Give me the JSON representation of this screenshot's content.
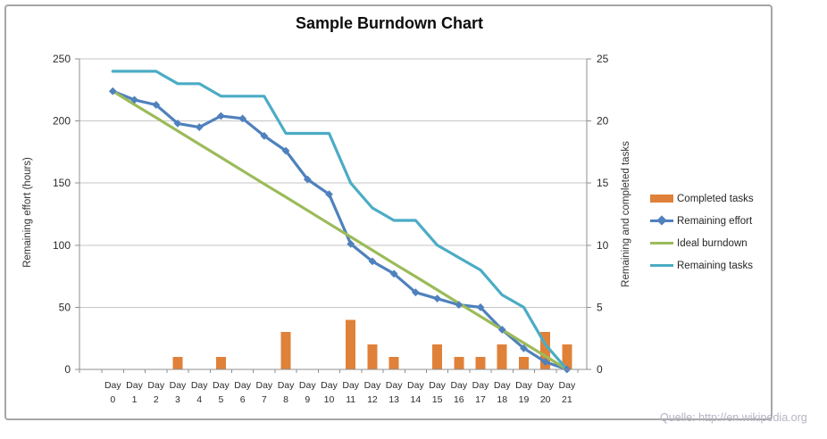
{
  "title": "Sample Burndown Chart",
  "watermark": "Quelle: http://en.wikipedia.org",
  "chart_data": {
    "type": "combo",
    "title": "Sample Burndown Chart",
    "grid": true,
    "legend_position": "right",
    "categories": [
      "Day 0",
      "Day 1",
      "Day 2",
      "Day 3",
      "Day 4",
      "Day 5",
      "Day 6",
      "Day 7",
      "Day 8",
      "Day 9",
      "Day 10",
      "Day 11",
      "Day 12",
      "Day 13",
      "Day 14",
      "Day 15",
      "Day 16",
      "Day 17",
      "Day 18",
      "Day 19",
      "Day 20",
      "Day 21"
    ],
    "left_axis": {
      "label": "Remaining effort (hours)",
      "ticks": [
        0,
        50,
        100,
        150,
        200,
        250
      ],
      "range": [
        0,
        250
      ]
    },
    "right_axis": {
      "label": "Remaining and completed tasks",
      "ticks": [
        0,
        5,
        10,
        15,
        20,
        25
      ],
      "range": [
        0,
        25
      ]
    },
    "series": [
      {
        "name": "Completed tasks",
        "type": "bar",
        "axis": "right",
        "color": "#e0813a",
        "values": [
          0,
          0,
          0,
          1,
          0,
          1,
          0,
          0,
          3,
          0,
          0,
          4,
          2,
          1,
          0,
          2,
          1,
          1,
          2,
          1,
          3,
          2
        ]
      },
      {
        "name": "Remaining effort",
        "type": "line",
        "marker": "diamond",
        "axis": "left",
        "color": "#4f81bd",
        "values": [
          224,
          217,
          213,
          198,
          195,
          204,
          202,
          188,
          176,
          153,
          141,
          101,
          87,
          77,
          62,
          57,
          52,
          50,
          32,
          17,
          6,
          0
        ]
      },
      {
        "name": "Ideal burndown",
        "type": "line",
        "marker": "none",
        "axis": "left",
        "color": "#9bbb59",
        "values": [
          224,
          213.3,
          202.7,
          192,
          181.3,
          170.7,
          160,
          149.3,
          138.7,
          128,
          117.3,
          106.7,
          96,
          85.3,
          74.7,
          64,
          53.3,
          42.7,
          32,
          21.3,
          10.7,
          0
        ]
      },
      {
        "name": "Remaining tasks",
        "type": "line",
        "marker": "none",
        "axis": "right",
        "color": "#4bacc6",
        "values": [
          24,
          24,
          24,
          23,
          23,
          22,
          22,
          22,
          19,
          19,
          19,
          15,
          13,
          12,
          12,
          10,
          9,
          8,
          6,
          5,
          2,
          0
        ]
      }
    ],
    "colors": {
      "gridline": "#c6c6c6",
      "axis_line": "#8f8f8f",
      "tick_text": "#2b2b2b"
    }
  }
}
